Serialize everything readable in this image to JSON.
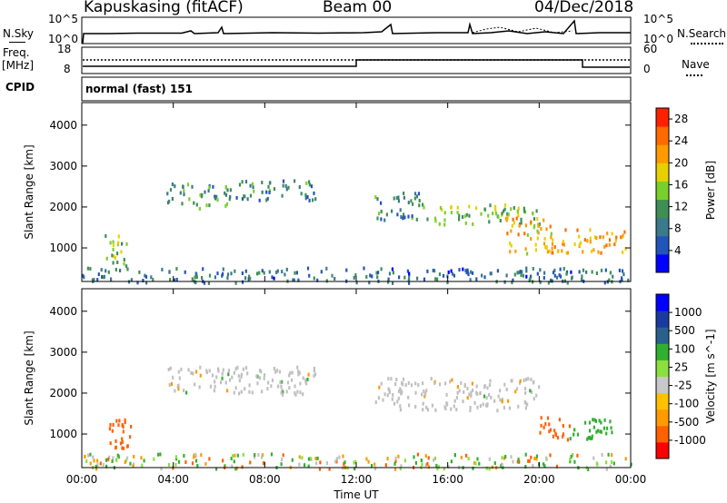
{
  "header": {
    "station": "Kapuskasing (fitACF)",
    "beam": "Beam 00",
    "date": "04/Dec/2018"
  },
  "left_labels": {
    "nsky": "N.Sky",
    "freq": "Freq.",
    "freq_unit": "[MHz]",
    "cpid": "CPID"
  },
  "right_labels": {
    "nsearch": "N.Search",
    "nave": "Nave"
  },
  "noise_panel": {
    "ticks_left": [
      "10^5",
      "10^0"
    ],
    "ticks_right": [
      "10^5",
      "10^0"
    ]
  },
  "freq_panel": {
    "ticks_left": [
      "18",
      "8"
    ],
    "ticks_right": [
      "60",
      "0"
    ]
  },
  "cpid_panel": {
    "text": "normal (fast) 151"
  },
  "colors": {
    "frame": "#000000",
    "power_scale": [
      "#0000ff",
      "#2255bb",
      "#3a7a8a",
      "#3f8f55",
      "#7bcf2a",
      "#e8d000",
      "#ff9a00",
      "#ff6a00",
      "#ff2000"
    ],
    "velocity_scale": [
      "#ff0000",
      "#ff6000",
      "#ff9a00",
      "#ffc000",
      "#c8c8c8",
      "#8ae040",
      "#30b030",
      "#2a6090",
      "#1a3aa0",
      "#0000ff"
    ],
    "ground_scatter": "#c0c0c0"
  },
  "chart_data": [
    {
      "type": "heatmap",
      "panel": "power",
      "ylabel": "Slant Range [km]",
      "xlabel": "Time UT",
      "x_ticks": [
        "00:00",
        "04:00",
        "08:00",
        "12:00",
        "16:00",
        "20:00",
        "00:00"
      ],
      "y_ticks": [
        1000,
        2000,
        3000,
        4000
      ],
      "ylim": [
        180,
        4550
      ],
      "xlim_hours": [
        0,
        24
      ],
      "colorbar": {
        "label": "Power [dB]",
        "ticks": [
          4,
          8,
          12,
          16,
          20,
          24,
          28
        ],
        "range": [
          0,
          30
        ]
      },
      "patches": [
        {
          "t0": 1.0,
          "t1": 2.0,
          "r0": 550,
          "r1": 1400,
          "value": 14
        },
        {
          "t0": 3.7,
          "t1": 6.6,
          "r0": 2000,
          "r1": 2600,
          "value": 11
        },
        {
          "t0": 6.6,
          "t1": 10.2,
          "r0": 2200,
          "r1": 2700,
          "value": 9
        },
        {
          "t0": 12.8,
          "t1": 14.8,
          "r0": 1700,
          "r1": 2400,
          "value": 10
        },
        {
          "t0": 14.8,
          "t1": 20.0,
          "r0": 1600,
          "r1": 2100,
          "value": 15
        },
        {
          "t0": 18.5,
          "t1": 20.5,
          "r0": 900,
          "r1": 1800,
          "value": 20
        },
        {
          "t0": 20.5,
          "t1": 23.8,
          "r0": 900,
          "r1": 1500,
          "value": 22
        },
        {
          "t0": 0.0,
          "t1": 24.0,
          "r0": 180,
          "r1": 550,
          "value": 8
        }
      ]
    },
    {
      "type": "heatmap",
      "panel": "velocity",
      "ylabel": "Slant Range [km]",
      "xlabel": "Time UT",
      "x_ticks": [
        "00:00",
        "04:00",
        "08:00",
        "12:00",
        "16:00",
        "20:00",
        "00:00"
      ],
      "y_ticks": [
        1000,
        2000,
        3000,
        4000
      ],
      "ylim": [
        180,
        4550
      ],
      "xlim_hours": [
        0,
        24
      ],
      "colorbar": {
        "label": "Velocity [m s^-1]",
        "ticks": [
          "1000",
          "500",
          "100",
          "25",
          "-25",
          "-100",
          "-500",
          "-1000"
        ]
      },
      "patches": [
        {
          "t0": 1.0,
          "t1": 2.2,
          "r0": 550,
          "r1": 1400,
          "value": -500
        },
        {
          "t0": 3.7,
          "t1": 10.2,
          "r0": 2000,
          "r1": 2700,
          "value": 0
        },
        {
          "t0": 12.8,
          "t1": 20.0,
          "r0": 1600,
          "r1": 2400,
          "value": 0
        },
        {
          "t0": 20.0,
          "t1": 21.3,
          "r0": 900,
          "r1": 1500,
          "value": -500
        },
        {
          "t0": 21.3,
          "t1": 23.7,
          "r0": 900,
          "r1": 1400,
          "value": 100
        },
        {
          "t0": 0.0,
          "t1": 24.0,
          "r0": 180,
          "r1": 550,
          "value": 50
        }
      ]
    }
  ]
}
